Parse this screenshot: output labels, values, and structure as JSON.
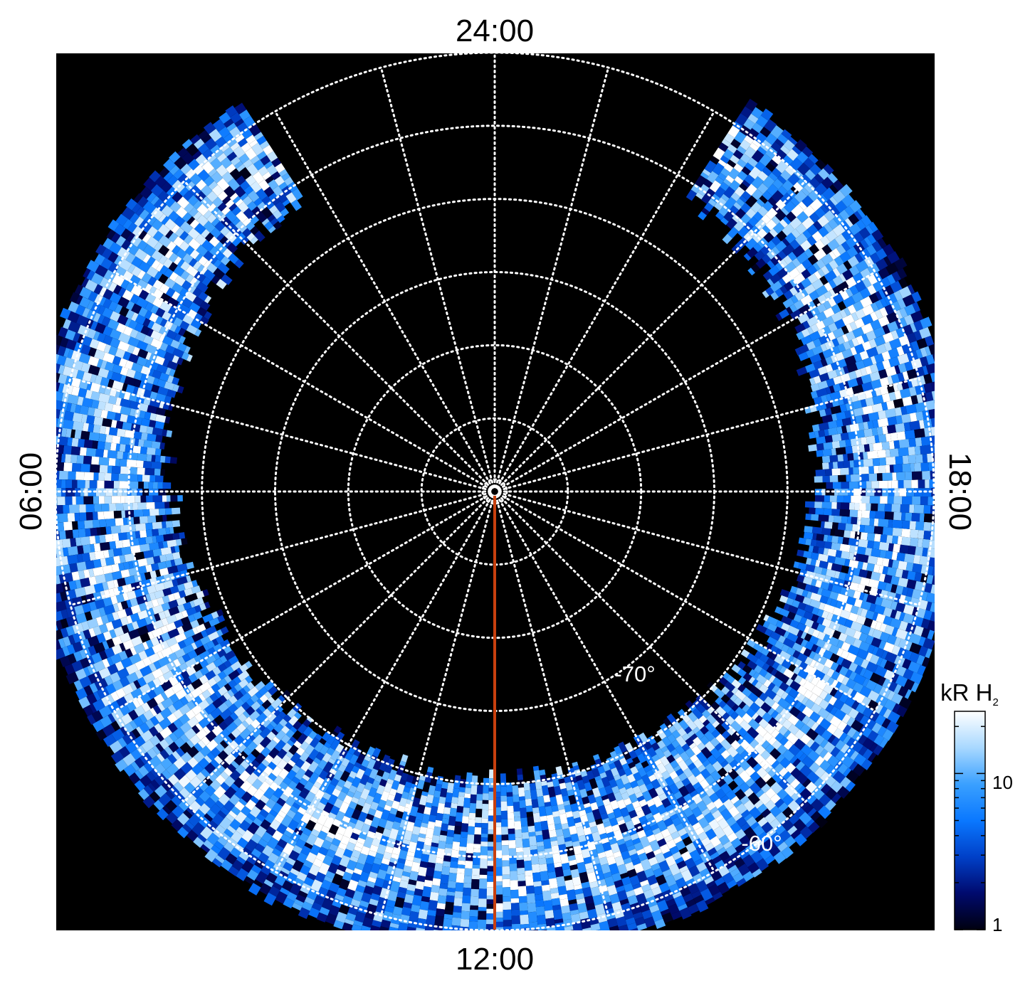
{
  "chart_data": {
    "type": "heatmap",
    "projection": "polar",
    "hemisphere": "south",
    "background_color": "#000000",
    "grid": true,
    "grid_color": "#ffffff",
    "local_time_labels": {
      "top": "24:00",
      "bottom": "12:00",
      "left": "06:00",
      "right": "18:00"
    },
    "latitude_circles": [
      -85,
      -80,
      -75,
      -70,
      -65,
      -60
    ],
    "latitude_labels": [
      {
        "lat": -70,
        "text": "-70°"
      },
      {
        "lat": -60,
        "text": "-60°"
      }
    ],
    "meridian_count": 24,
    "outer_latitude": -60,
    "marker_line": {
      "local_time_hours": 12,
      "color": "#c8400e"
    },
    "emission_region": {
      "min_latitude": -60,
      "max_latitude": -68,
      "local_time_hours": [
        2.2,
        21.8
      ]
    },
    "colorbar": {
      "title": "kR H",
      "title_subscript": "2",
      "scale": "log",
      "range": [
        1,
        25
      ],
      "tick_labels": [
        {
          "value": 1,
          "text": "1"
        },
        {
          "value": 10,
          "text": "10"
        }
      ],
      "colors": [
        "#000010",
        "#000a6e",
        "#0040c8",
        "#0a78ff",
        "#3aa0ff",
        "#a8d8ff",
        "#ffffff"
      ]
    }
  }
}
